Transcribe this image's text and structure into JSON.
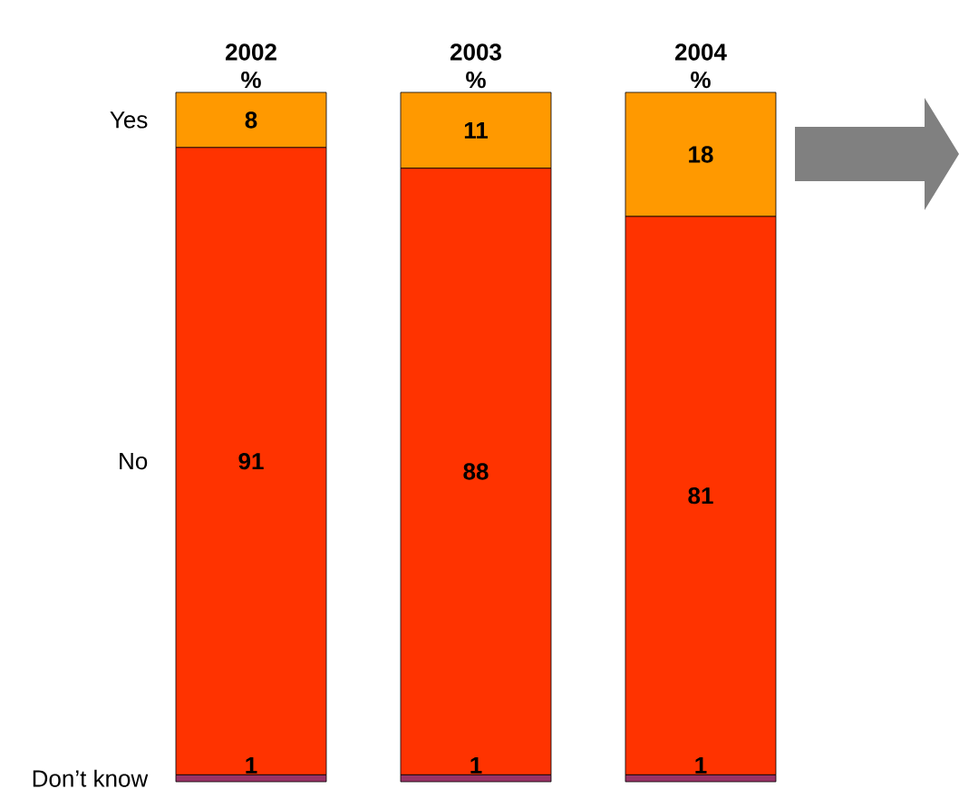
{
  "chart_data": {
    "type": "bar",
    "stacked": true,
    "categories": [
      "2002 %",
      "2003 %",
      "2004 %"
    ],
    "series": [
      {
        "name": "Don’t know",
        "color": "#993366",
        "values": [
          1,
          1,
          1
        ]
      },
      {
        "name": "No",
        "color": "#ff3300",
        "values": [
          91,
          88,
          81
        ]
      },
      {
        "name": "Yes",
        "color": "#ff9900",
        "values": [
          8,
          11,
          18
        ]
      }
    ],
    "data_labels": true
  }
}
